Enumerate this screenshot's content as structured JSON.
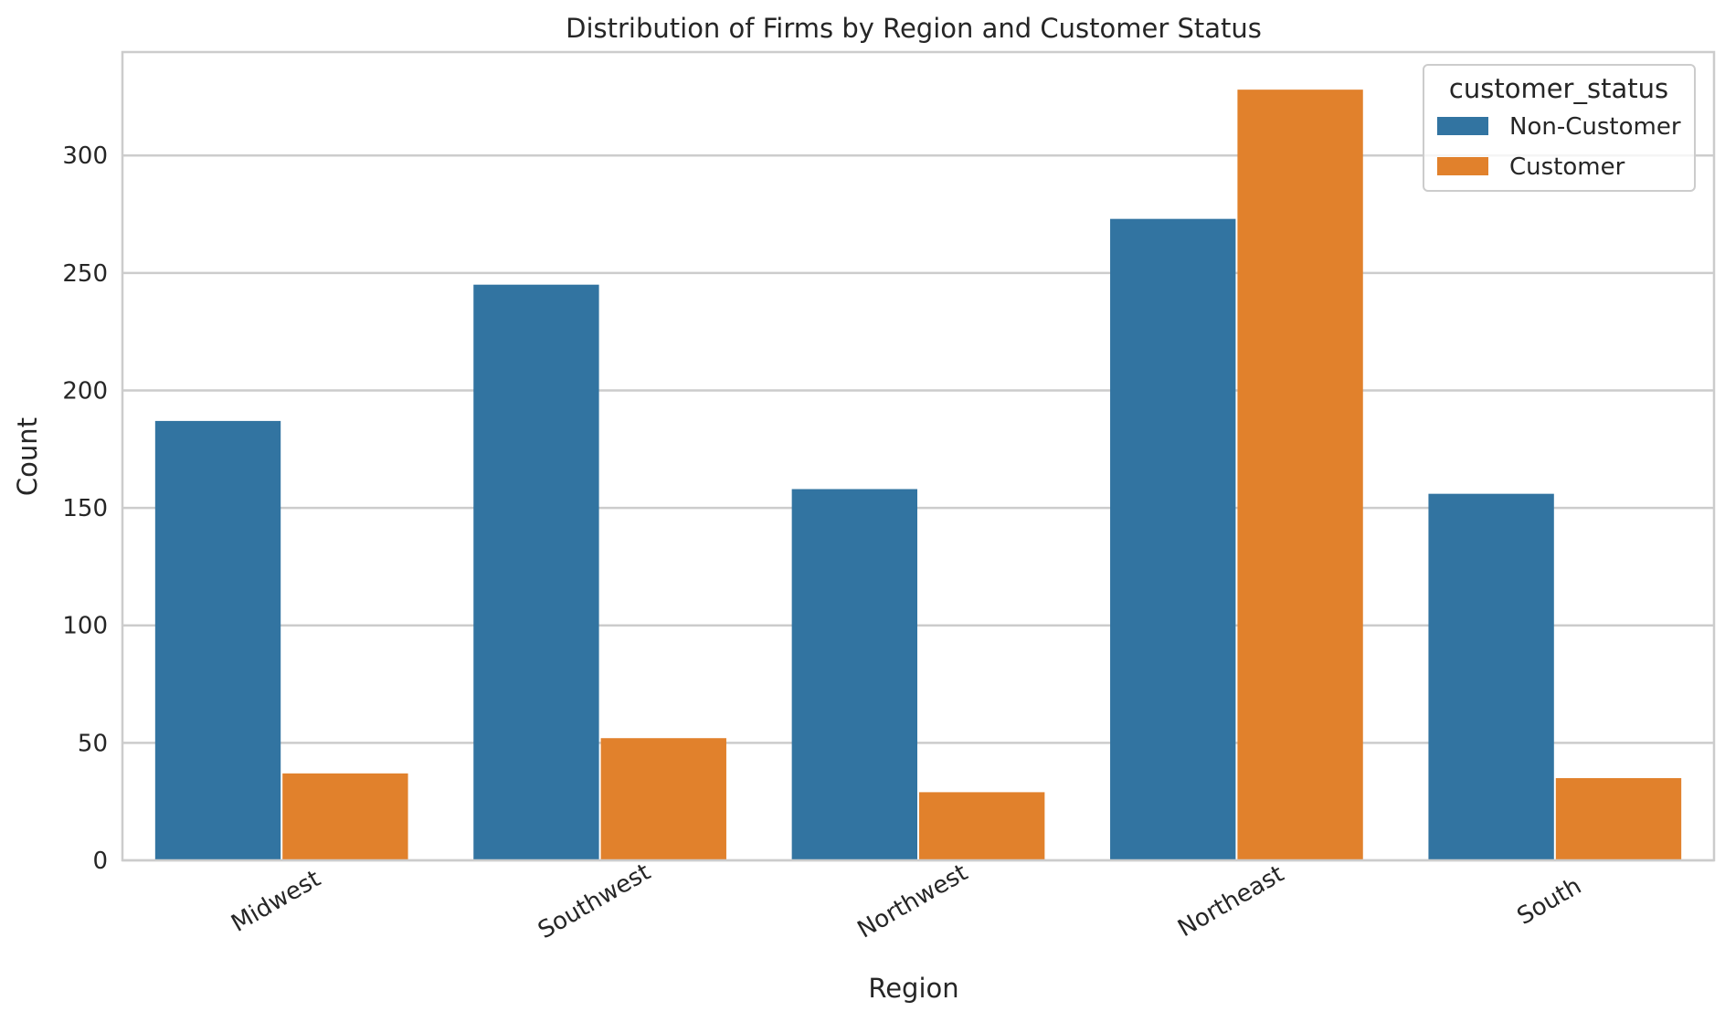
{
  "chart_data": {
    "type": "bar",
    "title": "Distribution of Firms by Region and Customer Status",
    "xlabel": "Region",
    "ylabel": "Count",
    "categories": [
      "Midwest",
      "Southwest",
      "Northwest",
      "Northeast",
      "South"
    ],
    "series": [
      {
        "name": "Non-Customer",
        "color": "#3274a1",
        "values": [
          187,
          245,
          158,
          273,
          156
        ]
      },
      {
        "name": "Customer",
        "color": "#e1812c",
        "values": [
          37,
          52,
          29,
          328,
          35
        ]
      }
    ],
    "ylim": [
      0,
      344
    ],
    "yticks": [
      0,
      50,
      100,
      150,
      200,
      250,
      300
    ],
    "grid": true,
    "legend": {
      "title": "customer_status",
      "placement": "top-right"
    },
    "xtick_rotation": -30
  }
}
